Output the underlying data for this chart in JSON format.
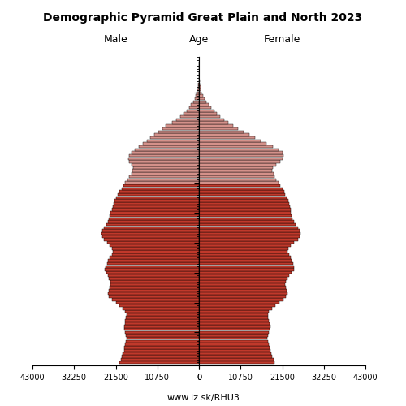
{
  "title": "Demographic Pyramid Great Plain and North 2023",
  "xlabel_left": "Male",
  "xlabel_right": "Female",
  "age_label": "Age",
  "source": "www.iz.sk/RHU3",
  "xlim": 43000,
  "yticks": [
    10,
    20,
    30,
    40,
    50,
    60,
    70,
    80,
    90
  ],
  "bar_color_young": "#c0392b",
  "bar_color_old": "#d4918a",
  "bar_edge_color": "#000000",
  "bar_edge_width": 0.3,
  "color_threshold": 60,
  "ages": [
    0,
    1,
    2,
    3,
    4,
    5,
    6,
    7,
    8,
    9,
    10,
    11,
    12,
    13,
    14,
    15,
    16,
    17,
    18,
    19,
    20,
    21,
    22,
    23,
    24,
    25,
    26,
    27,
    28,
    29,
    30,
    31,
    32,
    33,
    34,
    35,
    36,
    37,
    38,
    39,
    40,
    41,
    42,
    43,
    44,
    45,
    46,
    47,
    48,
    49,
    50,
    51,
    52,
    53,
    54,
    55,
    56,
    57,
    58,
    59,
    60,
    61,
    62,
    63,
    64,
    65,
    66,
    67,
    68,
    69,
    70,
    71,
    72,
    73,
    74,
    75,
    76,
    77,
    78,
    79,
    80,
    81,
    82,
    83,
    84,
    85,
    86,
    87,
    88,
    89,
    90,
    91,
    92,
    93,
    94,
    95,
    96,
    97,
    98,
    99,
    100
  ],
  "male": [
    20500,
    20200,
    19900,
    19700,
    19400,
    19200,
    19000,
    18900,
    18700,
    18800,
    19000,
    19200,
    19300,
    19100,
    19000,
    18800,
    18700,
    19000,
    19700,
    20500,
    21500,
    22500,
    23200,
    23500,
    23300,
    23000,
    22800,
    22900,
    23200,
    23500,
    24000,
    24300,
    24200,
    23800,
    23500,
    23000,
    22500,
    22200,
    22500,
    23000,
    23800,
    24500,
    25000,
    25200,
    25000,
    24500,
    24000,
    23500,
    23200,
    23000,
    22800,
    22500,
    22200,
    22000,
    21800,
    21500,
    21000,
    20500,
    20000,
    19500,
    19000,
    18500,
    18000,
    17500,
    17200,
    17000,
    17500,
    18000,
    18200,
    18100,
    17500,
    16500,
    15500,
    14500,
    13500,
    12500,
    11500,
    10500,
    9500,
    8500,
    7000,
    5800,
    4800,
    4000,
    3200,
    2600,
    2000,
    1550,
    1100,
    800,
    530,
    370,
    240,
    155,
    92,
    56,
    30,
    14,
    6,
    2,
    0
  ],
  "female": [
    19500,
    19200,
    18900,
    18600,
    18400,
    18200,
    18000,
    17900,
    17700,
    17800,
    18000,
    18200,
    18400,
    18200,
    18100,
    17900,
    17800,
    18000,
    18800,
    19700,
    20800,
    21800,
    22500,
    22800,
    22600,
    22400,
    22200,
    22500,
    22900,
    23300,
    24000,
    24500,
    24600,
    24300,
    24000,
    23600,
    23200,
    22800,
    23000,
    23600,
    24500,
    25500,
    26000,
    26200,
    26000,
    25500,
    25000,
    24500,
    24200,
    24000,
    23800,
    23600,
    23400,
    23200,
    23000,
    22700,
    22300,
    22000,
    21500,
    21000,
    20500,
    20000,
    19600,
    19200,
    18900,
    19000,
    20000,
    21000,
    21500,
    21800,
    21500,
    20500,
    19000,
    17500,
    16000,
    14500,
    13000,
    11500,
    10000,
    8800,
    7500,
    6400,
    5500,
    4700,
    3900,
    3200,
    2500,
    1900,
    1400,
    1000,
    700,
    480,
    320,
    200,
    125,
    78,
    46,
    25,
    12,
    5,
    2
  ]
}
